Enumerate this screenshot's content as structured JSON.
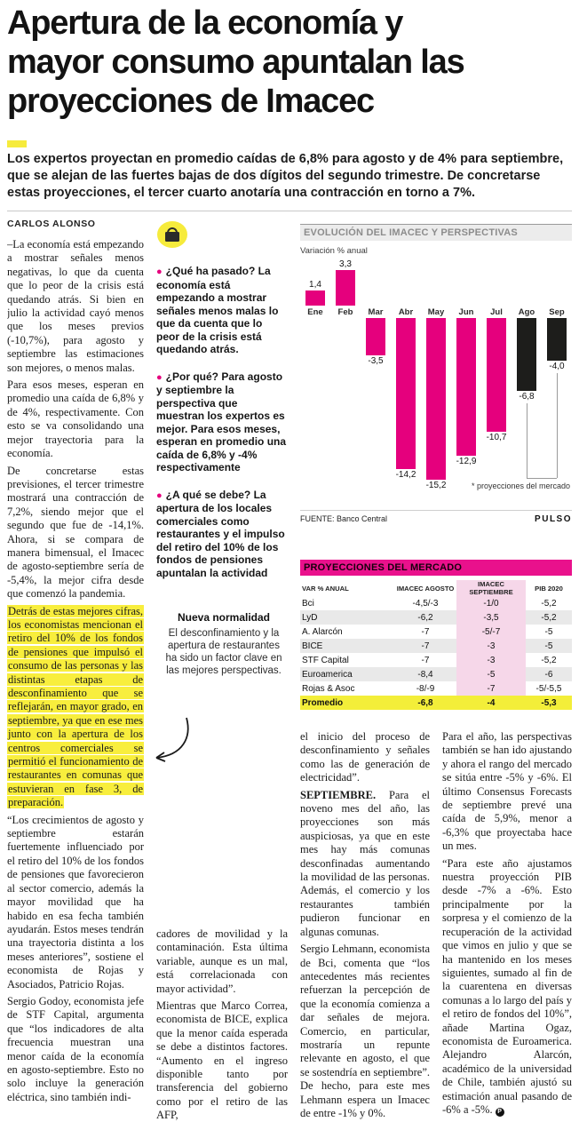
{
  "headline": [
    "Apertura de la economía y",
    "mayor consumo apuntalan las",
    "proyecciones de Imacec"
  ],
  "lead": "Los expertos proyectan en promedio caídas de 6,8% para agosto y de 4% para septiembre, que se alejan de las fuertes bajas de dos dígitos del segundo trimestre. De concretarse estas proyecciones, el tercer cuarto anotaría una contracción en torno a 7%.",
  "byline": "CARLOS ALONSO",
  "colors": {
    "accent_magenta": "#e5007d",
    "highlight_yellow": "#f6eb3c",
    "projection_black": "#1d1d1b"
  },
  "article": {
    "end_mark": "P",
    "col1": [
      {
        "text": "–La economía está empezando a mostrar señales menos negativas, lo que da cuenta que lo peor de la crisis está quedando atrás. Si bien en julio la actividad cayó menos que los meses previos (-10,7%), para agosto y septiembre las estimaciones son mejores, o menos malas."
      },
      {
        "text": "Para esos meses, esperan en promedio una caída de 6,8% y de 4%, respectivamente. Con esto se va consolidando una mejor trayectoria para la economía."
      },
      {
        "text": "De concretarse estas previsiones, el tercer trimestre mostrará una contracción de 7,2%, siendo mejor que el segundo que fue de -14,1%. Ahora, si se compara de manera bimensual, el Imacec de agosto-septiembre sería de -5,4%, la mejor cifra desde que comenzó la pandemia."
      },
      {
        "text": "Detrás de estas mejores cifras, los economistas mencionan el retiro del 10% de los fondos de pensiones que impulsó el consumo de las personas y las distintas etapas de desconfinamiento que se reflejarán, en mayor grado, en septiembre, ya que en ese mes junto con la apertura de los centros comerciales se permitió el funcionamiento de restaurantes en comunas que estuvieran en fase 3, de preparación.",
        "highlight": true
      },
      {
        "text": "“Los crecimientos de agosto y septiembre estarán fuertemente influenciado por el retiro del 10% de los fondos de pensiones que favorecieron al sector comercio, además la mayor movilidad que ha habido en esa fecha también ayudarán. Estos meses tendrán una trayectoria distinta a los meses anteriores”, sostiene el economista de Rojas y Asociados, Patricio Rojas."
      },
      {
        "text": "Sergio Godoy, economista jefe de STF Capital, argumenta que “los indicadores de alta frecuencia muestran una menor caída de la economía en agosto-septiembre. Esto no solo incluye la generación eléctrica, sino también indi-"
      }
    ],
    "col2": [
      {
        "text": "cadores de movilidad y la contaminación. Esta última variable, aunque es un mal, está correlacionada con mayor actividad”."
      },
      {
        "text": "Mientras que Marco Correa, economista de BICE, explica que la menor caída esperada se debe a distintos factores. “Aumento en el ingreso disponible tanto por transferencia del gobierno como por el retiro de las AFP,"
      }
    ],
    "col3": [
      {
        "text": "el inicio del proceso de desconfinamiento y señales como las de generación de electricidad”."
      },
      {
        "prefix": "SEPTIEMBRE.",
        "text": "Para el noveno mes del año, las proyecciones son más auspiciosas, ya que en este mes hay más comunas desconfinadas aumentando la movilidad de las personas. Además, el comercio y los restaurantes también pudieron funcionar en algunas comunas."
      },
      {
        "text": "Sergio Lehmann, economista de Bci, comenta que “los antecedentes más recientes refuerzan la percepción de que la economía comienza a dar señales de mejora. Comercio, en particular, mostraría un repunte relevante en agosto, el que se sostendría en septiembre”. De hecho, para este mes Lehmann espera un Imacec de entre -1% y 0%."
      }
    ],
    "col4": [
      {
        "text": "Para el año, las perspectivas también se han ido ajustando y ahora el rango del mercado se sitúa entre -5% y -6%. El último Consensus Forecasts de septiembre prevé una caída de 5,9%, menor a -6,3% que proyectaba hace un mes."
      },
      {
        "text": "“Para este año ajustamos nuestra proyección PIB desde -7% a -6%. Esto principalmente por la sorpresa y el comienzo de la recuperación de la actividad que vimos en julio y que se ha mantenido en los meses siguientes, sumado al fin de la cuarentena en diversas comunas a lo largo del país y el retiro de fondos del 10%”, añade Martina Ogaz, economista de Euroamerica. Alejandro Alarcón, académico de la universidad de Chile, también ajustó su estimación anual pasando de -6% a -5%.",
        "end": true
      }
    ]
  },
  "key_points": {
    "icon": "shopping-bag-icon",
    "items": [
      {
        "q": "¿Qué ha pasado?",
        "text": "La economía está empezando a mostrar señales menos malas lo que da cuenta que lo peor de la crisis está quedando atrás."
      },
      {
        "q": "¿Por qué?",
        "text": "Para agosto y septiembre la perspectiva que muestran los expertos es mejor. Para esos meses, esperan en promedio una caída de 6,8% y -4% respectivamente"
      },
      {
        "q": "¿A qué se debe?",
        "text": "La apertura de los locales comerciales como restaurantes y el impulso del retiro del 10% de los fondos de pensiones apuntalan la actividad"
      }
    ]
  },
  "note": {
    "title": "Nueva normalidad",
    "text": "El desconfinamiento y la apertura de restaurantes ha sido un factor clave en las mejores perspectivas."
  },
  "chart_data": {
    "type": "bar",
    "title": "EVOLUCIÓN DEL IMACEC Y PERSPECTIVAS",
    "subtitle": "Variación % anual",
    "categories": [
      "Ene",
      "Feb",
      "Mar",
      "Abr",
      "May",
      "Jun",
      "Jul",
      "Ago",
      "Sep"
    ],
    "values": [
      1.4,
      3.3,
      -3.5,
      -14.2,
      -15.2,
      -12.9,
      -10.7,
      -6.8,
      -4.0
    ],
    "labels": [
      "1,4",
      "3,3",
      "-3,5",
      "-14,2",
      "-15,2",
      "-12,9",
      "-10,7",
      "-6,8",
      "-4,0"
    ],
    "projection_indices": [
      7,
      8
    ],
    "bar_color": "#e5007d",
    "projection_color": "#1d1d1b",
    "note": "* proyecciones del mercado",
    "source": "FUENTE: Banco Central",
    "brand": "PULSO",
    "ylim": [
      -16,
      4
    ],
    "grid": false,
    "legend": "none"
  },
  "table": {
    "title": "PROYECCIONES DEL MERCADO",
    "headers": [
      "VAR % ANUAL",
      "IMACEC AGOSTO",
      "IMACEC SEPTIEMBRE",
      "PIB 2020"
    ],
    "rows": [
      [
        "Bci",
        "-4,5/-3",
        "-1/0",
        "-5,2"
      ],
      [
        "LyD",
        "-6,2",
        "-3,5",
        "-5,2"
      ],
      [
        "A. Alarcón",
        "-7",
        "-5/-7",
        "-5"
      ],
      [
        "BICE",
        "-7",
        "-3",
        "-5"
      ],
      [
        "STF Capital",
        "-7",
        "-3",
        "-5,2"
      ],
      [
        "Euroamerica",
        "-8,4",
        "-5",
        "-6"
      ],
      [
        "Rojas & Asoc",
        "-8/-9",
        "-7",
        "-5/-5,5"
      ]
    ],
    "promedio": [
      "Promedio",
      "-6,8",
      "-4",
      "-5,3"
    ]
  }
}
